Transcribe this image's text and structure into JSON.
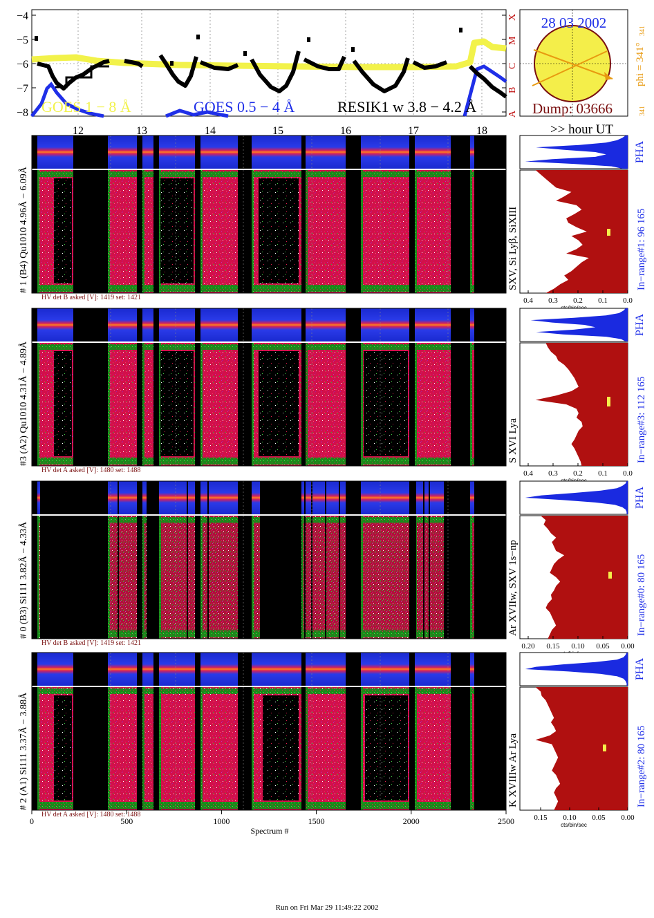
{
  "goes": {
    "yticks": [
      "−4",
      "−5",
      "−6",
      "−7",
      "−8"
    ],
    "class_letters": [
      "A",
      "B",
      "C",
      "M",
      "X"
    ],
    "legend_goes1": "GOES 1 − 8 Å",
    "legend_goes05": "GOES 0.5 − 4 Å",
    "legend_resik": "RESIK1 w 3.8 − 4.2 Å",
    "colors": {
      "goes_long": "#f2f24a",
      "goes_short": "#1f2fe8",
      "resik": "#000000"
    }
  },
  "hours": {
    "labels": [
      "12",
      "13",
      "14",
      "15",
      "16",
      "17",
      "18"
    ],
    "unit_label": ">> hour UT"
  },
  "sun": {
    "date": "28 03 2002",
    "dump": "Dump: 03666",
    "phi_label": "phi = 341°",
    "phi_sub": "341",
    "phi_small": "341"
  },
  "panels": [
    {
      "id": "panel-det1",
      "left": "# 1 (B4) Qu1010 4.96Å − 6.09Å",
      "line": "SXV, Si Lyβ, SiXIII",
      "count": "In−range#1:  96 165",
      "hv": "HV det B asked [V]:  1419 set:  1421",
      "xticks": [
        "0.4",
        "0.3",
        "0.2",
        "0.1",
        "0.0"
      ],
      "xlabel": "cts/bin/sec",
      "pha": "PHA"
    },
    {
      "id": "panel-det3",
      "left": "#3 (A2) Qu1010  4.31Å − 4.89Å",
      "line": "S XVI Lya",
      "count": "In−range#3:  112 165",
      "hv": "HV det A asked [V]:  1480 set:  1488",
      "xticks": [
        "0.4",
        "0.3",
        "0.2",
        "0.1",
        "0.0"
      ],
      "xlabel": "cts/bin/sec",
      "pha": "PHA"
    },
    {
      "id": "panel-det0",
      "left": "# 0 (B3) Si111  3.82Å − 4.33Å",
      "line": "Ar XVIIw, SXV 1s−np",
      "count": "In−range#0:  80 165",
      "hv": "HV det B asked [V]:  1419 set:  1421",
      "xticks": [
        "0.20",
        "0.15",
        "0.10",
        "0.05",
        "0.00"
      ],
      "xlabel": "cts/bin/sec",
      "pha": "PHA"
    },
    {
      "id": "panel-det2",
      "left": "# 2 (A1) Si111  3.37Å − 3.88Å",
      "line": "K XVIIIw  Ar Lya",
      "count": "In−range#2:   80 165",
      "hv": "HV det A asked [V]:  1480 set:  1488",
      "xticks": [
        "0.15",
        "0.10",
        "0.05",
        "0.00"
      ],
      "xlabel": "cts/bin/sec",
      "pha": "PHA"
    }
  ],
  "spectrum_axis": {
    "ticks": [
      "0",
      "500",
      "1000",
      "1500",
      "2000",
      "2500"
    ],
    "label": "Spectrum #"
  },
  "footer": "Run on Fri Mar 29 11:49:22 2002"
}
